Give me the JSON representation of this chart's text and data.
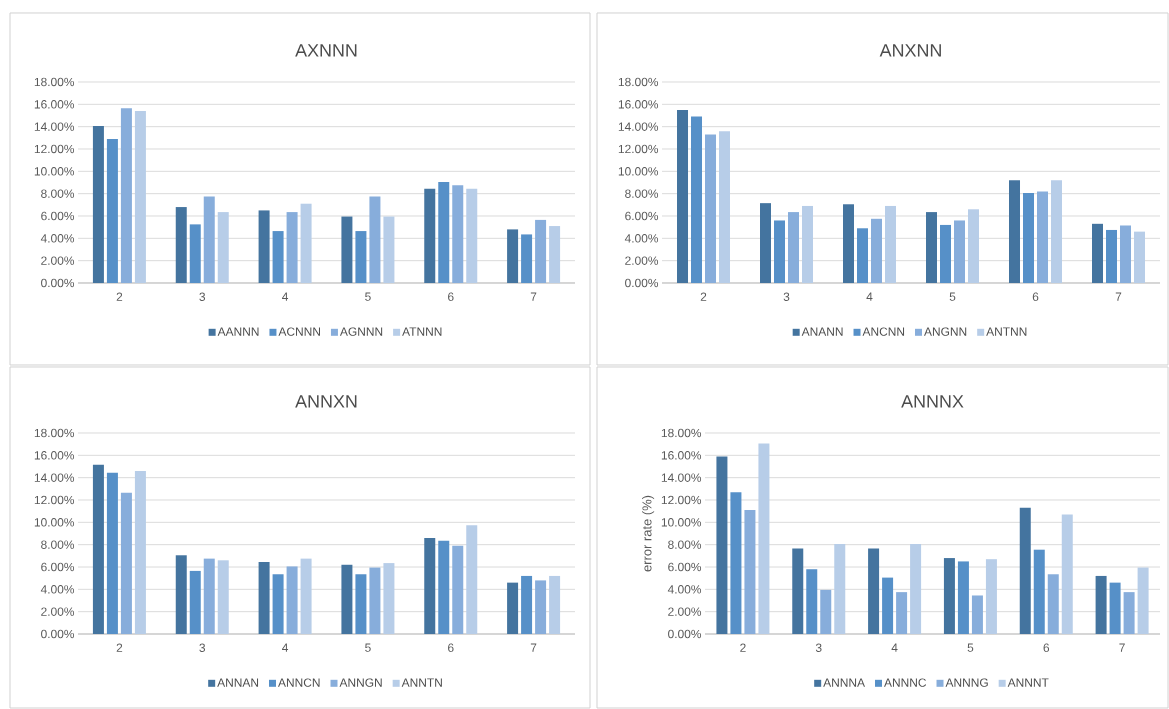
{
  "chart_data": [
    {
      "type": "bar",
      "title": "AXNNN",
      "categories": [
        "2",
        "3",
        "4",
        "5",
        "6",
        "7"
      ],
      "ylim": [
        0,
        18
      ],
      "grid": "y",
      "legend": "bottom",
      "yticks": [
        {
          "value": 0,
          "label": "0.00%"
        },
        {
          "value": 2,
          "label": "2.00%"
        },
        {
          "value": 4,
          "label": "4.00%"
        },
        {
          "value": 6,
          "label": "6.00%"
        },
        {
          "value": 8,
          "label": "8.00%"
        },
        {
          "value": 10,
          "label": "10.00%"
        },
        {
          "value": 12,
          "label": "12.00%"
        },
        {
          "value": 14,
          "label": "14.00%"
        },
        {
          "value": 16,
          "label": "16.00%"
        },
        {
          "value": 18,
          "label": "18.00%"
        }
      ],
      "series": [
        {
          "name": "AANNN",
          "color": "#44749f",
          "values": [
            14.05,
            6.8,
            6.5,
            5.95,
            8.45,
            4.8
          ]
        },
        {
          "name": "ACNNN",
          "color": "#5690c8",
          "values": [
            12.9,
            5.25,
            4.65,
            4.65,
            9.05,
            4.35
          ]
        },
        {
          "name": "AGNNN",
          "color": "#87addb",
          "values": [
            15.65,
            7.75,
            6.35,
            7.75,
            8.75,
            5.65
          ]
        },
        {
          "name": "ATNNN",
          "color": "#b7cde8",
          "values": [
            15.4,
            6.35,
            7.1,
            5.95,
            8.45,
            5.1
          ]
        }
      ]
    },
    {
      "type": "bar",
      "title": "ANXNN",
      "categories": [
        "2",
        "3",
        "4",
        "5",
        "6",
        "7"
      ],
      "ylim": [
        0,
        18
      ],
      "grid": "y",
      "legend": "bottom",
      "yticks": [
        {
          "value": 0,
          "label": "0.00%"
        },
        {
          "value": 2,
          "label": "2.00%"
        },
        {
          "value": 4,
          "label": "4.00%"
        },
        {
          "value": 6,
          "label": "6.00%"
        },
        {
          "value": 8,
          "label": "8.00%"
        },
        {
          "value": 10,
          "label": "10.00%"
        },
        {
          "value": 12,
          "label": "12.00%"
        },
        {
          "value": 14,
          "label": "14.00%"
        },
        {
          "value": 16,
          "label": "16.00%"
        },
        {
          "value": 18,
          "label": "18.00%"
        }
      ],
      "series": [
        {
          "name": "ANANN",
          "color": "#44749f",
          "values": [
            15.5,
            7.15,
            7.05,
            6.35,
            9.2,
            5.3
          ]
        },
        {
          "name": "ANCNN",
          "color": "#5690c8",
          "values": [
            14.9,
            5.6,
            4.9,
            5.2,
            8.05,
            4.75
          ]
        },
        {
          "name": "ANGNN",
          "color": "#87addb",
          "values": [
            13.3,
            6.35,
            5.75,
            5.6,
            8.2,
            5.15
          ]
        },
        {
          "name": "ANTNN",
          "color": "#b7cde8",
          "values": [
            13.6,
            6.9,
            6.9,
            6.6,
            9.2,
            4.6
          ]
        }
      ]
    },
    {
      "type": "bar",
      "title": "ANNXN",
      "categories": [
        "2",
        "3",
        "4",
        "5",
        "6",
        "7"
      ],
      "ylim": [
        0,
        18
      ],
      "grid": "y",
      "legend": "bottom",
      "yticks": [
        {
          "value": 0,
          "label": "0.00%"
        },
        {
          "value": 2,
          "label": "2.00%"
        },
        {
          "value": 4,
          "label": "4.00%"
        },
        {
          "value": 6,
          "label": "6.00%"
        },
        {
          "value": 8,
          "label": "8.00%"
        },
        {
          "value": 10,
          "label": "10.00%"
        },
        {
          "value": 12,
          "label": "12.00%"
        },
        {
          "value": 14,
          "label": "14.00%"
        },
        {
          "value": 16,
          "label": "16.00%"
        },
        {
          "value": 18,
          "label": "18.00%"
        }
      ],
      "series": [
        {
          "name": "ANNAN",
          "color": "#44749f",
          "values": [
            15.15,
            7.05,
            6.45,
            6.2,
            8.6,
            4.6
          ]
        },
        {
          "name": "ANNCN",
          "color": "#5690c8",
          "values": [
            14.45,
            5.65,
            5.35,
            5.35,
            8.35,
            5.2
          ]
        },
        {
          "name": "ANNGN",
          "color": "#87addb",
          "values": [
            12.65,
            6.75,
            6.05,
            5.95,
            7.9,
            4.8
          ]
        },
        {
          "name": "ANNTN",
          "color": "#b7cde8",
          "values": [
            14.6,
            6.6,
            6.75,
            6.35,
            9.75,
            5.2
          ]
        }
      ]
    },
    {
      "type": "bar",
      "title": "ANNNX",
      "ylabel": "error  rate (%)",
      "categories": [
        "2",
        "3",
        "4",
        "5",
        "6",
        "7"
      ],
      "ylim": [
        0,
        18
      ],
      "grid": "y",
      "legend": "bottom",
      "yticks": [
        {
          "value": 0,
          "label": "0.00%"
        },
        {
          "value": 2,
          "label": "2.00%"
        },
        {
          "value": 4,
          "label": "4.00%"
        },
        {
          "value": 6,
          "label": "6.00%"
        },
        {
          "value": 8,
          "label": "8.00%"
        },
        {
          "value": 10,
          "label": "10.00%"
        },
        {
          "value": 12,
          "label": "12.00%"
        },
        {
          "value": 14,
          "label": "14.00%"
        },
        {
          "value": 16,
          "label": "16.00%"
        },
        {
          "value": 18,
          "label": "18.00%"
        }
      ],
      "series": [
        {
          "name": "ANNNA",
          "color": "#44749f",
          "values": [
            15.9,
            7.65,
            7.65,
            6.8,
            11.3,
            5.2
          ]
        },
        {
          "name": "ANNNC",
          "color": "#5690c8",
          "values": [
            12.7,
            5.8,
            5.05,
            6.5,
            7.55,
            4.6
          ]
        },
        {
          "name": "ANNNG",
          "color": "#87addb",
          "values": [
            11.1,
            3.95,
            3.75,
            3.45,
            5.35,
            3.75
          ]
        },
        {
          "name": "ANNNT",
          "color": "#b7cde8",
          "values": [
            17.05,
            8.05,
            8.05,
            6.7,
            10.7,
            5.95
          ]
        }
      ]
    }
  ]
}
